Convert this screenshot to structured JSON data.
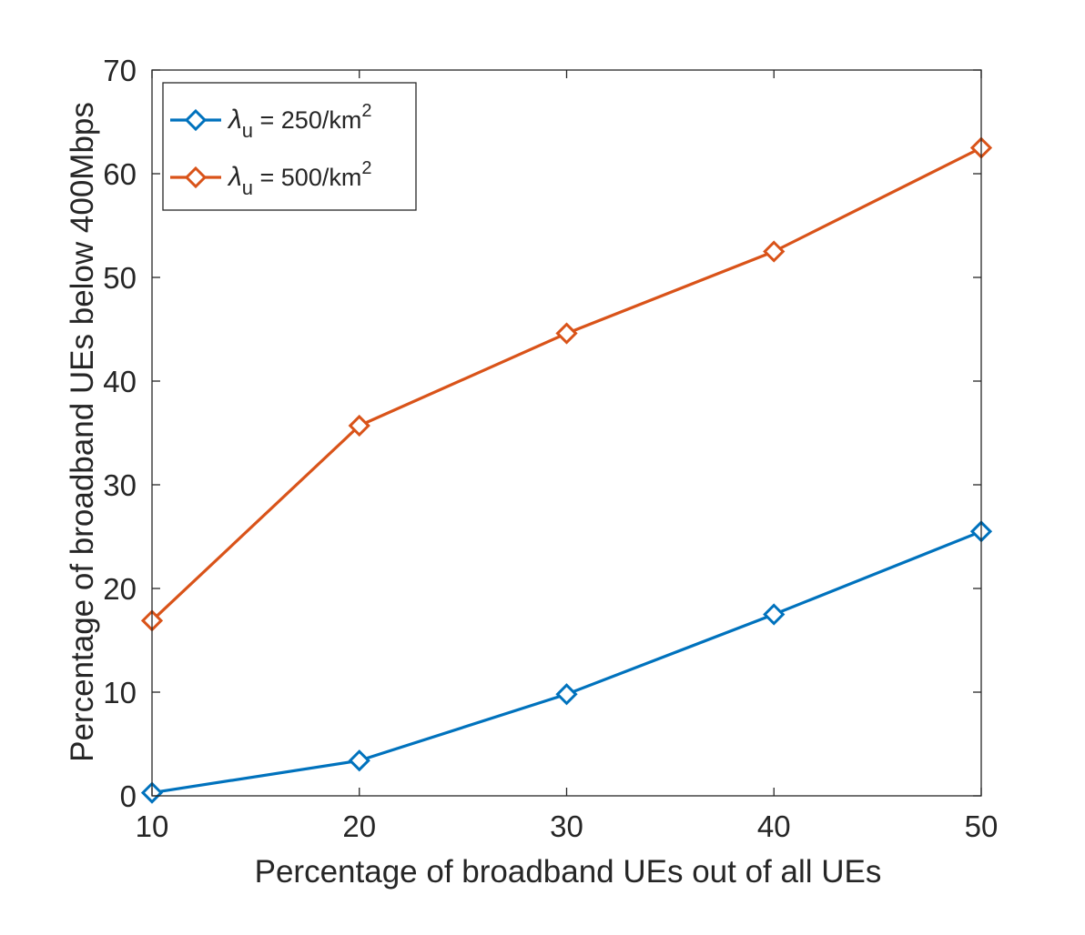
{
  "chart_data": {
    "type": "line",
    "xlabel": "Percentage of broadband UEs out of all UEs",
    "ylabel": "Percentage of broadband UEs below 400Mbps",
    "xlim": [
      10,
      50
    ],
    "ylim": [
      0,
      70
    ],
    "x_ticks": [
      10,
      20,
      30,
      40,
      50
    ],
    "y_ticks": [
      0,
      10,
      20,
      30,
      40,
      50,
      60,
      70
    ],
    "x": [
      10,
      20,
      30,
      40,
      50
    ],
    "grid": false,
    "legend_position": "top-left",
    "series": [
      {
        "legend": {
          "symbol": "λ",
          "subscript": "u",
          "text": " = 250/km",
          "superscript": "2"
        },
        "color": "#0072BD",
        "marker": "diamond",
        "values": [
          0.3,
          3.4,
          9.8,
          17.5,
          25.5
        ]
      },
      {
        "legend": {
          "symbol": "λ",
          "subscript": "u",
          "text": " = 500/km",
          "superscript": "2"
        },
        "color": "#D95319",
        "marker": "diamond",
        "values": [
          16.9,
          35.7,
          44.6,
          52.5,
          62.5
        ]
      }
    ]
  }
}
